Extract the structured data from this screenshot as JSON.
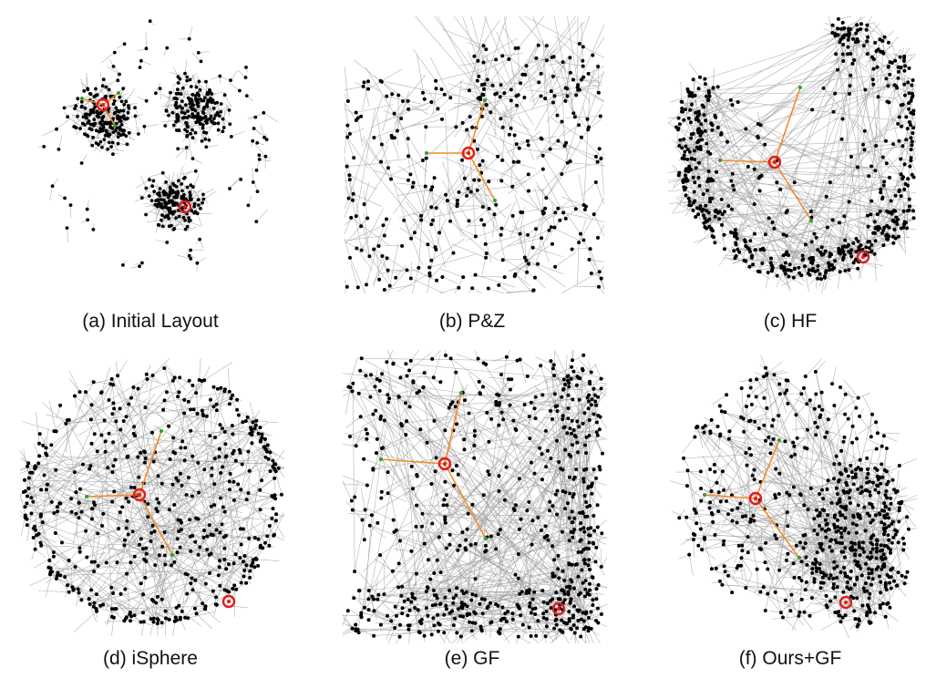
{
  "figure": {
    "panels": [
      {
        "id": "a",
        "caption": "(a) Initial Layout",
        "layout": "initial-clusters",
        "node_color": "#000000",
        "edge_color": "#9a9a9a",
        "focus_color": "#e51b1b",
        "highlight_edge_color": "#f28c28",
        "neighbor_color": "#2e9e2e"
      },
      {
        "id": "b",
        "caption": "(b) P&Z",
        "layout": "pan-zoom-cropped",
        "node_color": "#000000",
        "edge_color": "#9a9a9a",
        "focus_color": "#e51b1b",
        "highlight_edge_color": "#f28c28",
        "neighbor_color": "#2e9e2e"
      },
      {
        "id": "c",
        "caption": "(c) HF",
        "layout": "hyperbolic-disk",
        "node_color": "#000000",
        "edge_color": "#9a9a9a",
        "focus_color": "#e51b1b",
        "highlight_edge_color": "#f28c28",
        "neighbor_color": "#2e9e2e"
      },
      {
        "id": "d",
        "caption": "(d) iSphere",
        "layout": "sphere-disk",
        "node_color": "#000000",
        "edge_color": "#9a9a9a",
        "focus_color": "#e51b1b",
        "highlight_edge_color": "#f28c28",
        "neighbor_color": "#2e9e2e"
      },
      {
        "id": "e",
        "caption": "(e) GF",
        "layout": "rectangular-fisheye",
        "node_color": "#000000",
        "edge_color": "#9a9a9a",
        "focus_color": "#e51b1b",
        "highlight_edge_color": "#f28c28",
        "neighbor_color": "#2e9e2e"
      },
      {
        "id": "f",
        "caption": "(f) Ours+GF",
        "layout": "combined-fisheye",
        "node_color": "#000000",
        "edge_color": "#9a9a9a",
        "focus_color": "#e51b1b",
        "highlight_edge_color": "#f28c28",
        "neighbor_color": "#2e9e2e"
      }
    ]
  }
}
